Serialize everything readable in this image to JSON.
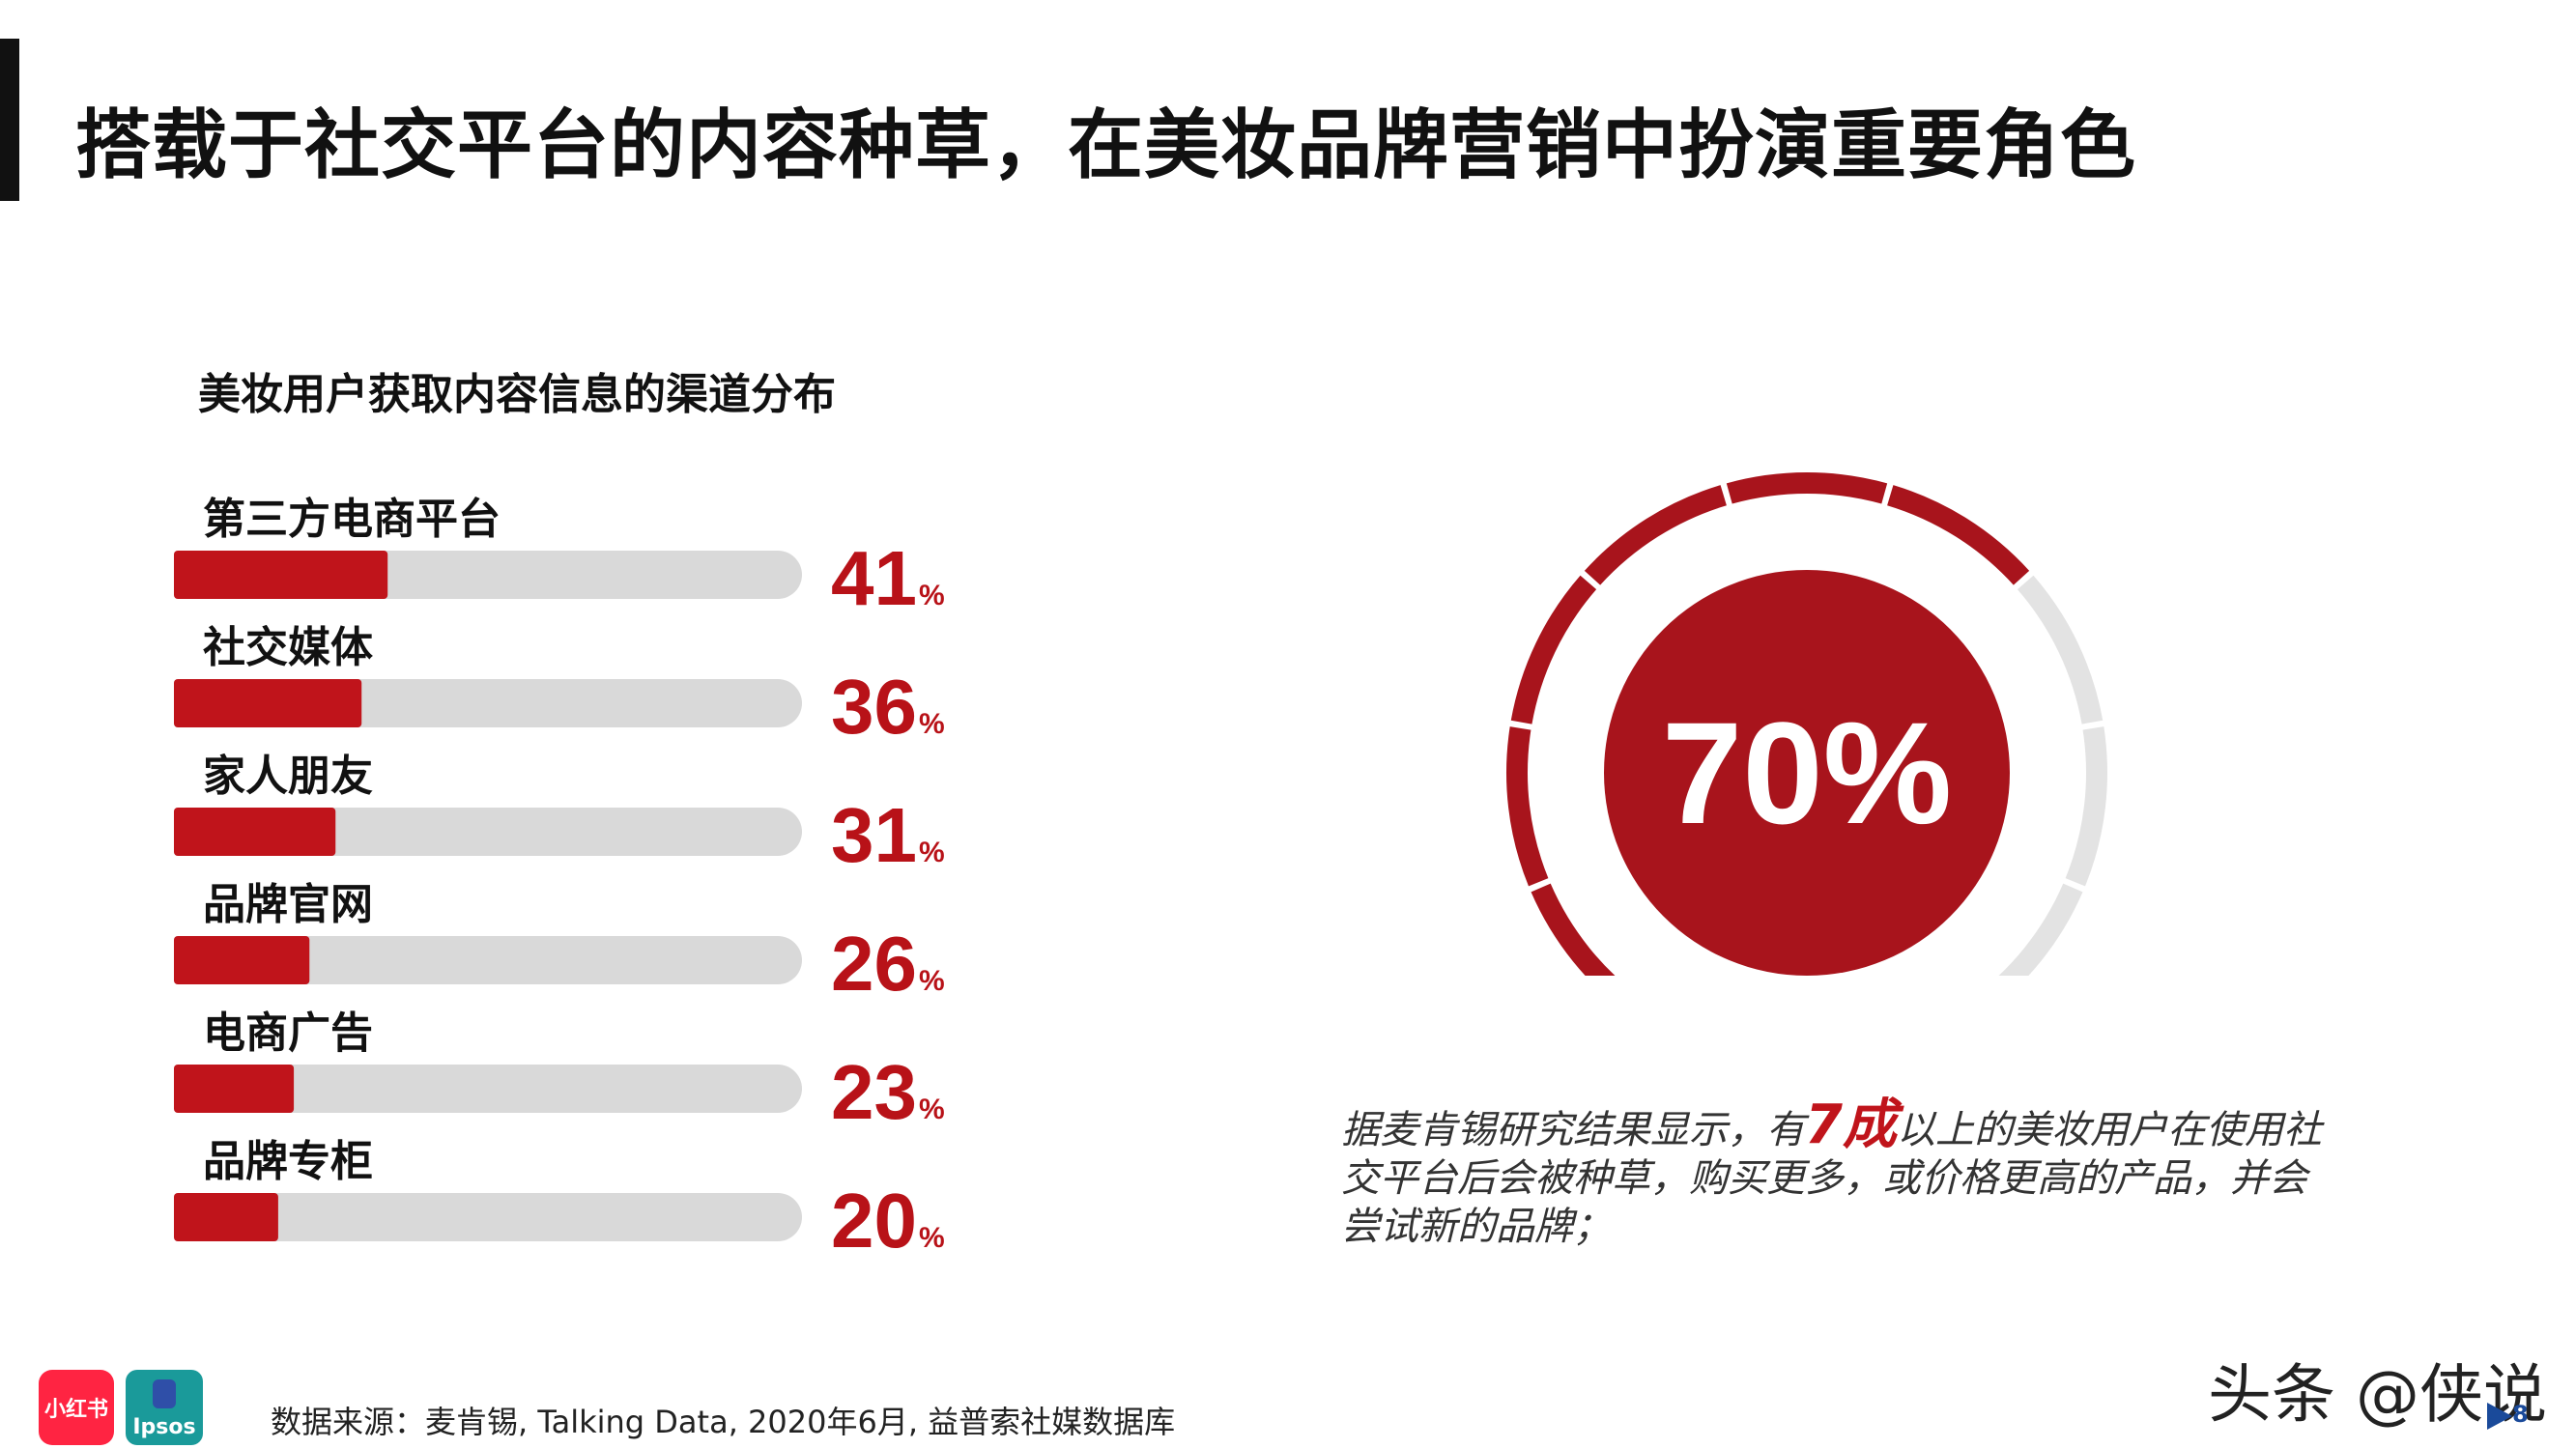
{
  "page": {
    "title": "搭载于社交平台的内容种草，在美妆品牌营销中扮演重要角色"
  },
  "chart_data": [
    {
      "type": "bar",
      "title": "美妆用户获取内容信息的渠道分布",
      "categories": [
        "第三方电商平台",
        "社交媒体",
        "家人朋友",
        "品牌官网",
        "电商广告",
        "品牌专柜"
      ],
      "values": [
        41,
        36,
        31,
        26,
        23,
        20
      ],
      "value_suffix": "%",
      "xlim": [
        0,
        100
      ],
      "colors": {
        "fill": "#c0141b",
        "track": "#d9d9d9"
      }
    },
    {
      "type": "gauge",
      "value": 70,
      "label": "70%",
      "range": [
        0,
        100
      ],
      "colors": {
        "fill": "#a8141c",
        "track": "#e3e3e3"
      }
    }
  ],
  "note": {
    "prefix": "据麦肯锡研究结果显示，有",
    "highlight": "7成",
    "suffix": "以上的美妆用户在使用社交平台后会被种草，购买更多，或价格更高的产品，并会尝试新的品牌；"
  },
  "footer": {
    "logo_xhs": "小红书",
    "logo_ipsos": "Ipsos",
    "source": "数据来源：麦肯锡, Talking Data, 2020年6月, 益普索社媒数据库",
    "watermark": "头条 @侠说",
    "page_number": "8"
  }
}
